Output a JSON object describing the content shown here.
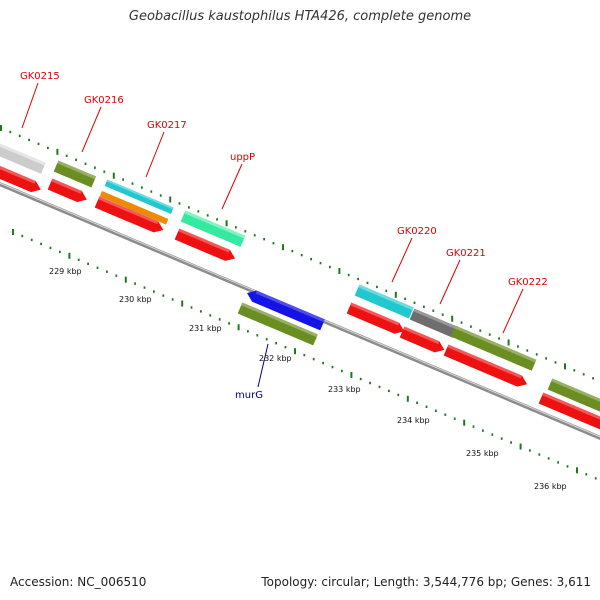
{
  "title": "Geobacillus kaustophilus HTA426, complete genome",
  "footer": {
    "accession": "Accession: NC_006510",
    "summary": "Topology: circular; Length: 3,544,776 bp; Genes: 3,611"
  },
  "colors": {
    "backbone": "#8c8c8c",
    "cds_red": "#ee1111",
    "olive": "#6b8e23",
    "cyan": "#22c8d0",
    "orange": "#ee8a00",
    "mint": "#33eaa0",
    "blue": "#1414e6",
    "gray_gene": "#6e6e6e",
    "light_gray": "#cccccc",
    "ticks": "#1f7a1f",
    "label_red": "#dd0000",
    "label_blue": "#00008b"
  },
  "ruler": {
    "labels": [
      "229 kbp",
      "230 kbp",
      "231 kbp",
      "232 kbp",
      "233 kbp",
      "234 kbp",
      "235 kbp",
      "236 kbp"
    ]
  },
  "gene_labels": [
    {
      "name": "GK0215"
    },
    {
      "name": "GK0216"
    },
    {
      "name": "GK0217"
    },
    {
      "name": "uppP"
    },
    {
      "name": "GK0220"
    },
    {
      "name": "GK0221"
    },
    {
      "name": "GK0222"
    },
    {
      "name": "murG"
    }
  ]
}
